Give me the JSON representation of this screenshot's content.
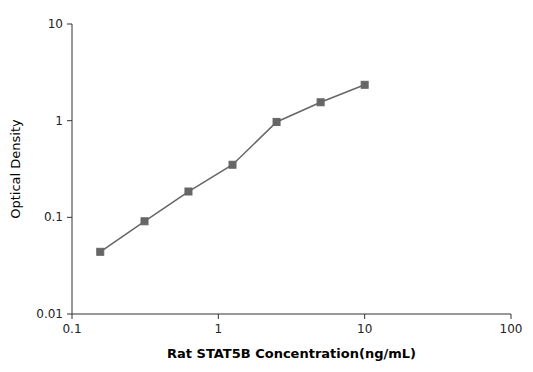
{
  "chart_data": {
    "type": "line",
    "x": [
      0.156,
      0.313,
      0.625,
      1.25,
      2.5,
      5.0,
      10.0
    ],
    "values": [
      0.044,
      0.091,
      0.185,
      0.35,
      0.97,
      1.55,
      2.35
    ],
    "xlabel": "Rat STAT5B Concentration(ng/mL)",
    "ylabel": "Optical Density",
    "xlim": [
      0.1,
      100
    ],
    "ylim": [
      0.01,
      10
    ],
    "xticks": [
      0.1,
      1,
      10,
      100
    ],
    "yticks": [
      0.01,
      0.1,
      1,
      10
    ],
    "log": true,
    "grid": false,
    "color": "#666666",
    "marker": "square"
  }
}
